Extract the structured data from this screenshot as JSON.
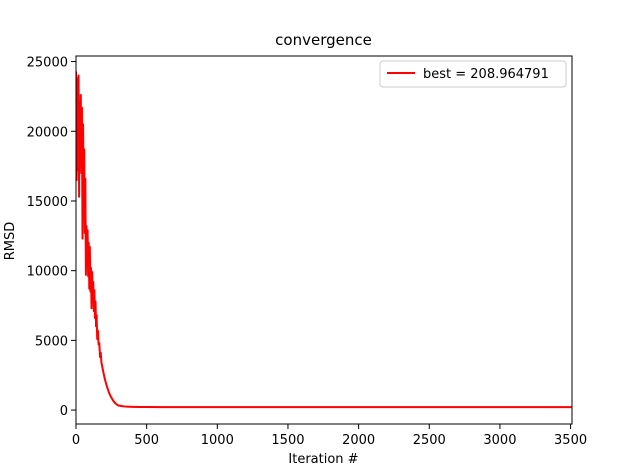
{
  "chart_data": {
    "type": "line",
    "title": "convergence",
    "xlabel": "Iteration #",
    "ylabel": "RMSD",
    "xlim": [
      0,
      3510
    ],
    "ylim": [
      -1000,
      25400
    ],
    "xticks": [
      0,
      500,
      1000,
      1500,
      2000,
      2500,
      3000,
      3500
    ],
    "yticks": [
      0,
      5000,
      10000,
      15000,
      20000,
      25000
    ],
    "xtick_labels": [
      "0",
      "500",
      "1000",
      "1500",
      "2000",
      "2500",
      "3000",
      "3500"
    ],
    "ytick_labels": [
      "0",
      "5000",
      "10000",
      "15000",
      "20000",
      "25000"
    ],
    "grid": false,
    "legend_position": "top-right",
    "series": [
      {
        "name": "best = 208.964791",
        "color": "#ff0000",
        "x": [
          0,
          5,
          10,
          14,
          18,
          22,
          26,
          30,
          34,
          38,
          42,
          46,
          50,
          54,
          58,
          62,
          66,
          70,
          74,
          78,
          82,
          86,
          90,
          94,
          98,
          102,
          106,
          110,
          114,
          118,
          122,
          126,
          130,
          134,
          138,
          142,
          146,
          150,
          155,
          160,
          165,
          170,
          175,
          180,
          190,
          200,
          210,
          220,
          230,
          240,
          250,
          260,
          270,
          280,
          290,
          300,
          320,
          340,
          360,
          380,
          400,
          450,
          500,
          600,
          800,
          1000,
          1500,
          2000,
          2500,
          3000,
          3510
        ],
        "y": [
          24300,
          16500,
          23800,
          17200,
          24000,
          15300,
          22000,
          18200,
          22600,
          17000,
          21700,
          12300,
          20500,
          14600,
          18700,
          12700,
          16600,
          9700,
          13200,
          10300,
          12900,
          9600,
          12000,
          8700,
          11700,
          8500,
          10200,
          7300,
          9900,
          8400,
          9200,
          7100,
          8600,
          6600,
          7800,
          6000,
          6800,
          5100,
          5700,
          4700,
          4800,
          3800,
          4100,
          3400,
          2900,
          2400,
          2000,
          1650,
          1350,
          1100,
          900,
          720,
          580,
          470,
          390,
          330,
          290,
          260,
          245,
          235,
          228,
          220,
          215,
          212,
          210,
          209.5,
          209.2,
          209.1,
          209.0,
          208.97,
          208.964791
        ]
      }
    ]
  }
}
